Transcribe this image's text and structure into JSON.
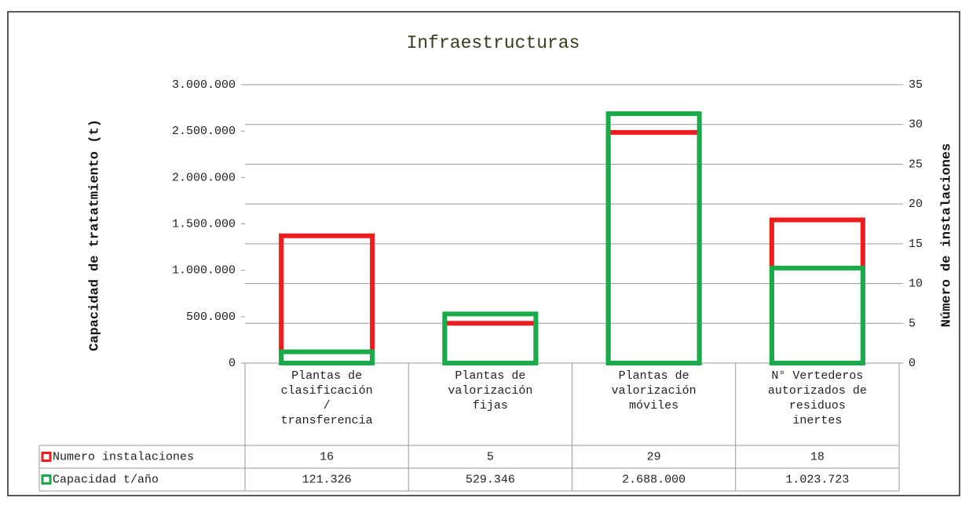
{
  "chart_data": {
    "type": "bar",
    "title": "Infraestructuras",
    "y_label": "Capacidad de tratatmiento (t)",
    "y2_label": "Número de instalaciones",
    "categories": [
      "Plantas de\nclasificación\n/\ntransferencia",
      "Plantas de\nvalorización\nfijas",
      "Plantas de\nvalorización\nmóviles",
      "N° Vertederos\nautorizados de\nresiduos\ninertes"
    ],
    "series": [
      {
        "name": "Numero instalaciones",
        "color": "#ee1c1c",
        "axis": "y2",
        "values": [
          16,
          5,
          29,
          18
        ]
      },
      {
        "name": "Capacidad t/año",
        "color": "#1aaa4a",
        "axis": "y",
        "values": [
          121326,
          529346,
          2688000,
          1023723
        ],
        "value_labels": [
          "121.326",
          "529.346",
          "2.688.000",
          "1.023.723"
        ]
      }
    ],
    "ylim": [
      0,
      3000000
    ],
    "yticks": [
      0,
      {
        "value": 500000,
        "label": "500.000"
      },
      {
        "value": 1000000,
        "label": "1.000.000"
      },
      {
        "value": 1500000,
        "label": "1.500.000"
      },
      {
        "value": 2000000,
        "label": "2.000.000"
      },
      {
        "value": 2500000,
        "label": "2.500.000"
      },
      {
        "value": 3000000,
        "label": "3.000.000"
      }
    ],
    "y2lim": [
      0,
      35
    ],
    "y2ticks": [
      0,
      5,
      10,
      15,
      20,
      25,
      30,
      35
    ],
    "grid": true
  }
}
